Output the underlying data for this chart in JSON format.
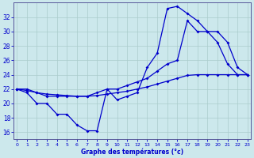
{
  "series_a_x": [
    0,
    1,
    2,
    3,
    4,
    5,
    6,
    7,
    8,
    9,
    10,
    11,
    12,
    13,
    14,
    15,
    16,
    17,
    18,
    19,
    20,
    21,
    22,
    23
  ],
  "series_a_y": [
    22,
    21.5,
    20,
    20,
    18.5,
    18.5,
    17,
    16.2,
    16.2,
    22,
    20.5,
    21,
    21.5,
    25,
    27,
    33.2,
    33.5,
    32.5,
    31.5,
    30,
    28.5,
    25.5,
    24,
    24
  ],
  "series_b_x": [
    0,
    1,
    2,
    3,
    4,
    5,
    6,
    7,
    8,
    9,
    10,
    11,
    12,
    13,
    14,
    15,
    16,
    17,
    18,
    19,
    20,
    21,
    22,
    23
  ],
  "series_b_y": [
    22,
    22,
    21.5,
    21,
    21,
    21,
    21,
    21,
    21.5,
    22,
    22,
    22.5,
    23,
    23.5,
    24.5,
    25.5,
    26,
    31.5,
    30,
    30,
    30,
    28.5,
    25,
    24
  ],
  "series_c_x": [
    0,
    1,
    2,
    3,
    4,
    5,
    6,
    7,
    8,
    9,
    10,
    11,
    12,
    13,
    14,
    15,
    16,
    17,
    18,
    19,
    20,
    21,
    22,
    23
  ],
  "series_c_y": [
    22,
    21.8,
    21.5,
    21.3,
    21.2,
    21.1,
    21.0,
    21.0,
    21.1,
    21.3,
    21.5,
    21.7,
    22.0,
    22.3,
    22.7,
    23.1,
    23.5,
    23.9,
    24.0,
    24.0,
    24.0,
    24.0,
    24.0,
    24.0
  ],
  "xlabel": "Graphe des températures (°c)",
  "yticks": [
    16,
    18,
    20,
    22,
    24,
    26,
    28,
    30,
    32
  ],
  "xticks": [
    0,
    1,
    2,
    3,
    4,
    5,
    6,
    7,
    8,
    9,
    10,
    11,
    12,
    13,
    14,
    15,
    16,
    17,
    18,
    19,
    20,
    21,
    22,
    23
  ],
  "bg_color": "#cce8ec",
  "grid_color": "#aacccc",
  "line_color": "#0000cc",
  "xlim": [
    -0.3,
    23.3
  ],
  "ylim": [
    15.0,
    34.0
  ]
}
